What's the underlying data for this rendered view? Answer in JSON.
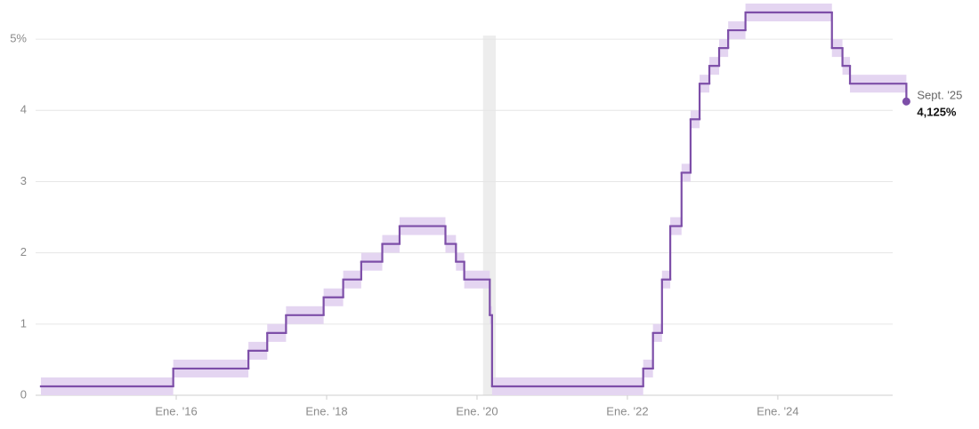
{
  "chart_data": {
    "type": "step",
    "color": "#7d4ea8",
    "band_color": "#e4d5f1",
    "recession_color": "#ededed",
    "recession": [
      2020.08,
      2020.25
    ],
    "grid": true,
    "xlim": [
      2014.1,
      2025.8
    ],
    "ylim": [
      0,
      5.5
    ],
    "yticks": [
      0,
      1,
      2,
      3,
      4,
      {
        "value": 5,
        "label": "5%"
      }
    ],
    "xticks": [
      {
        "value": 2016,
        "label": "Ene. '16"
      },
      {
        "value": 2018,
        "label": "Ene. '18"
      },
      {
        "value": 2020,
        "label": "Ene. '20"
      },
      {
        "value": 2022,
        "label": "Ene. '22"
      },
      {
        "value": 2024,
        "label": "Ene. '24"
      }
    ],
    "x": [
      2014.2,
      2015.96,
      2016.96,
      2017.21,
      2017.46,
      2017.96,
      2018.22,
      2018.46,
      2018.74,
      2018.97,
      2019.58,
      2019.72,
      2019.83,
      2020.17,
      2020.2,
      2022.21,
      2022.34,
      2022.46,
      2022.57,
      2022.72,
      2022.84,
      2022.96,
      2023.09,
      2023.22,
      2023.34,
      2023.57,
      2024.72,
      2024.86,
      2024.96,
      2025.71
    ],
    "values": [
      0.125,
      0.375,
      0.625,
      0.875,
      1.125,
      1.375,
      1.625,
      1.875,
      2.125,
      2.375,
      2.125,
      1.875,
      1.625,
      1.125,
      0.125,
      0.375,
      0.875,
      1.625,
      2.375,
      3.125,
      3.875,
      4.375,
      4.625,
      4.875,
      5.125,
      5.375,
      4.875,
      4.625,
      4.375,
      4.125
    ],
    "range_lower": [
      0,
      0.25,
      0.5,
      0.75,
      1,
      1.25,
      1.5,
      1.75,
      2,
      2.25,
      2,
      1.75,
      1.5,
      1,
      0,
      0.25,
      0.75,
      1.5,
      2.25,
      3,
      3.75,
      4.25,
      4.5,
      4.75,
      5,
      5.25,
      4.75,
      4.5,
      4.25,
      4
    ],
    "range_upper": [
      0.25,
      0.5,
      0.75,
      1,
      1.25,
      1.5,
      1.75,
      2,
      2.25,
      2.5,
      2.25,
      2,
      1.75,
      1.25,
      0.25,
      0.5,
      1,
      1.75,
      2.5,
      3.25,
      4,
      4.5,
      4.75,
      5,
      5.25,
      5.5,
      5,
      4.75,
      4.5,
      4.25
    ],
    "end_label": {
      "date": "Sept. '25",
      "value_label": "4,125%"
    }
  }
}
